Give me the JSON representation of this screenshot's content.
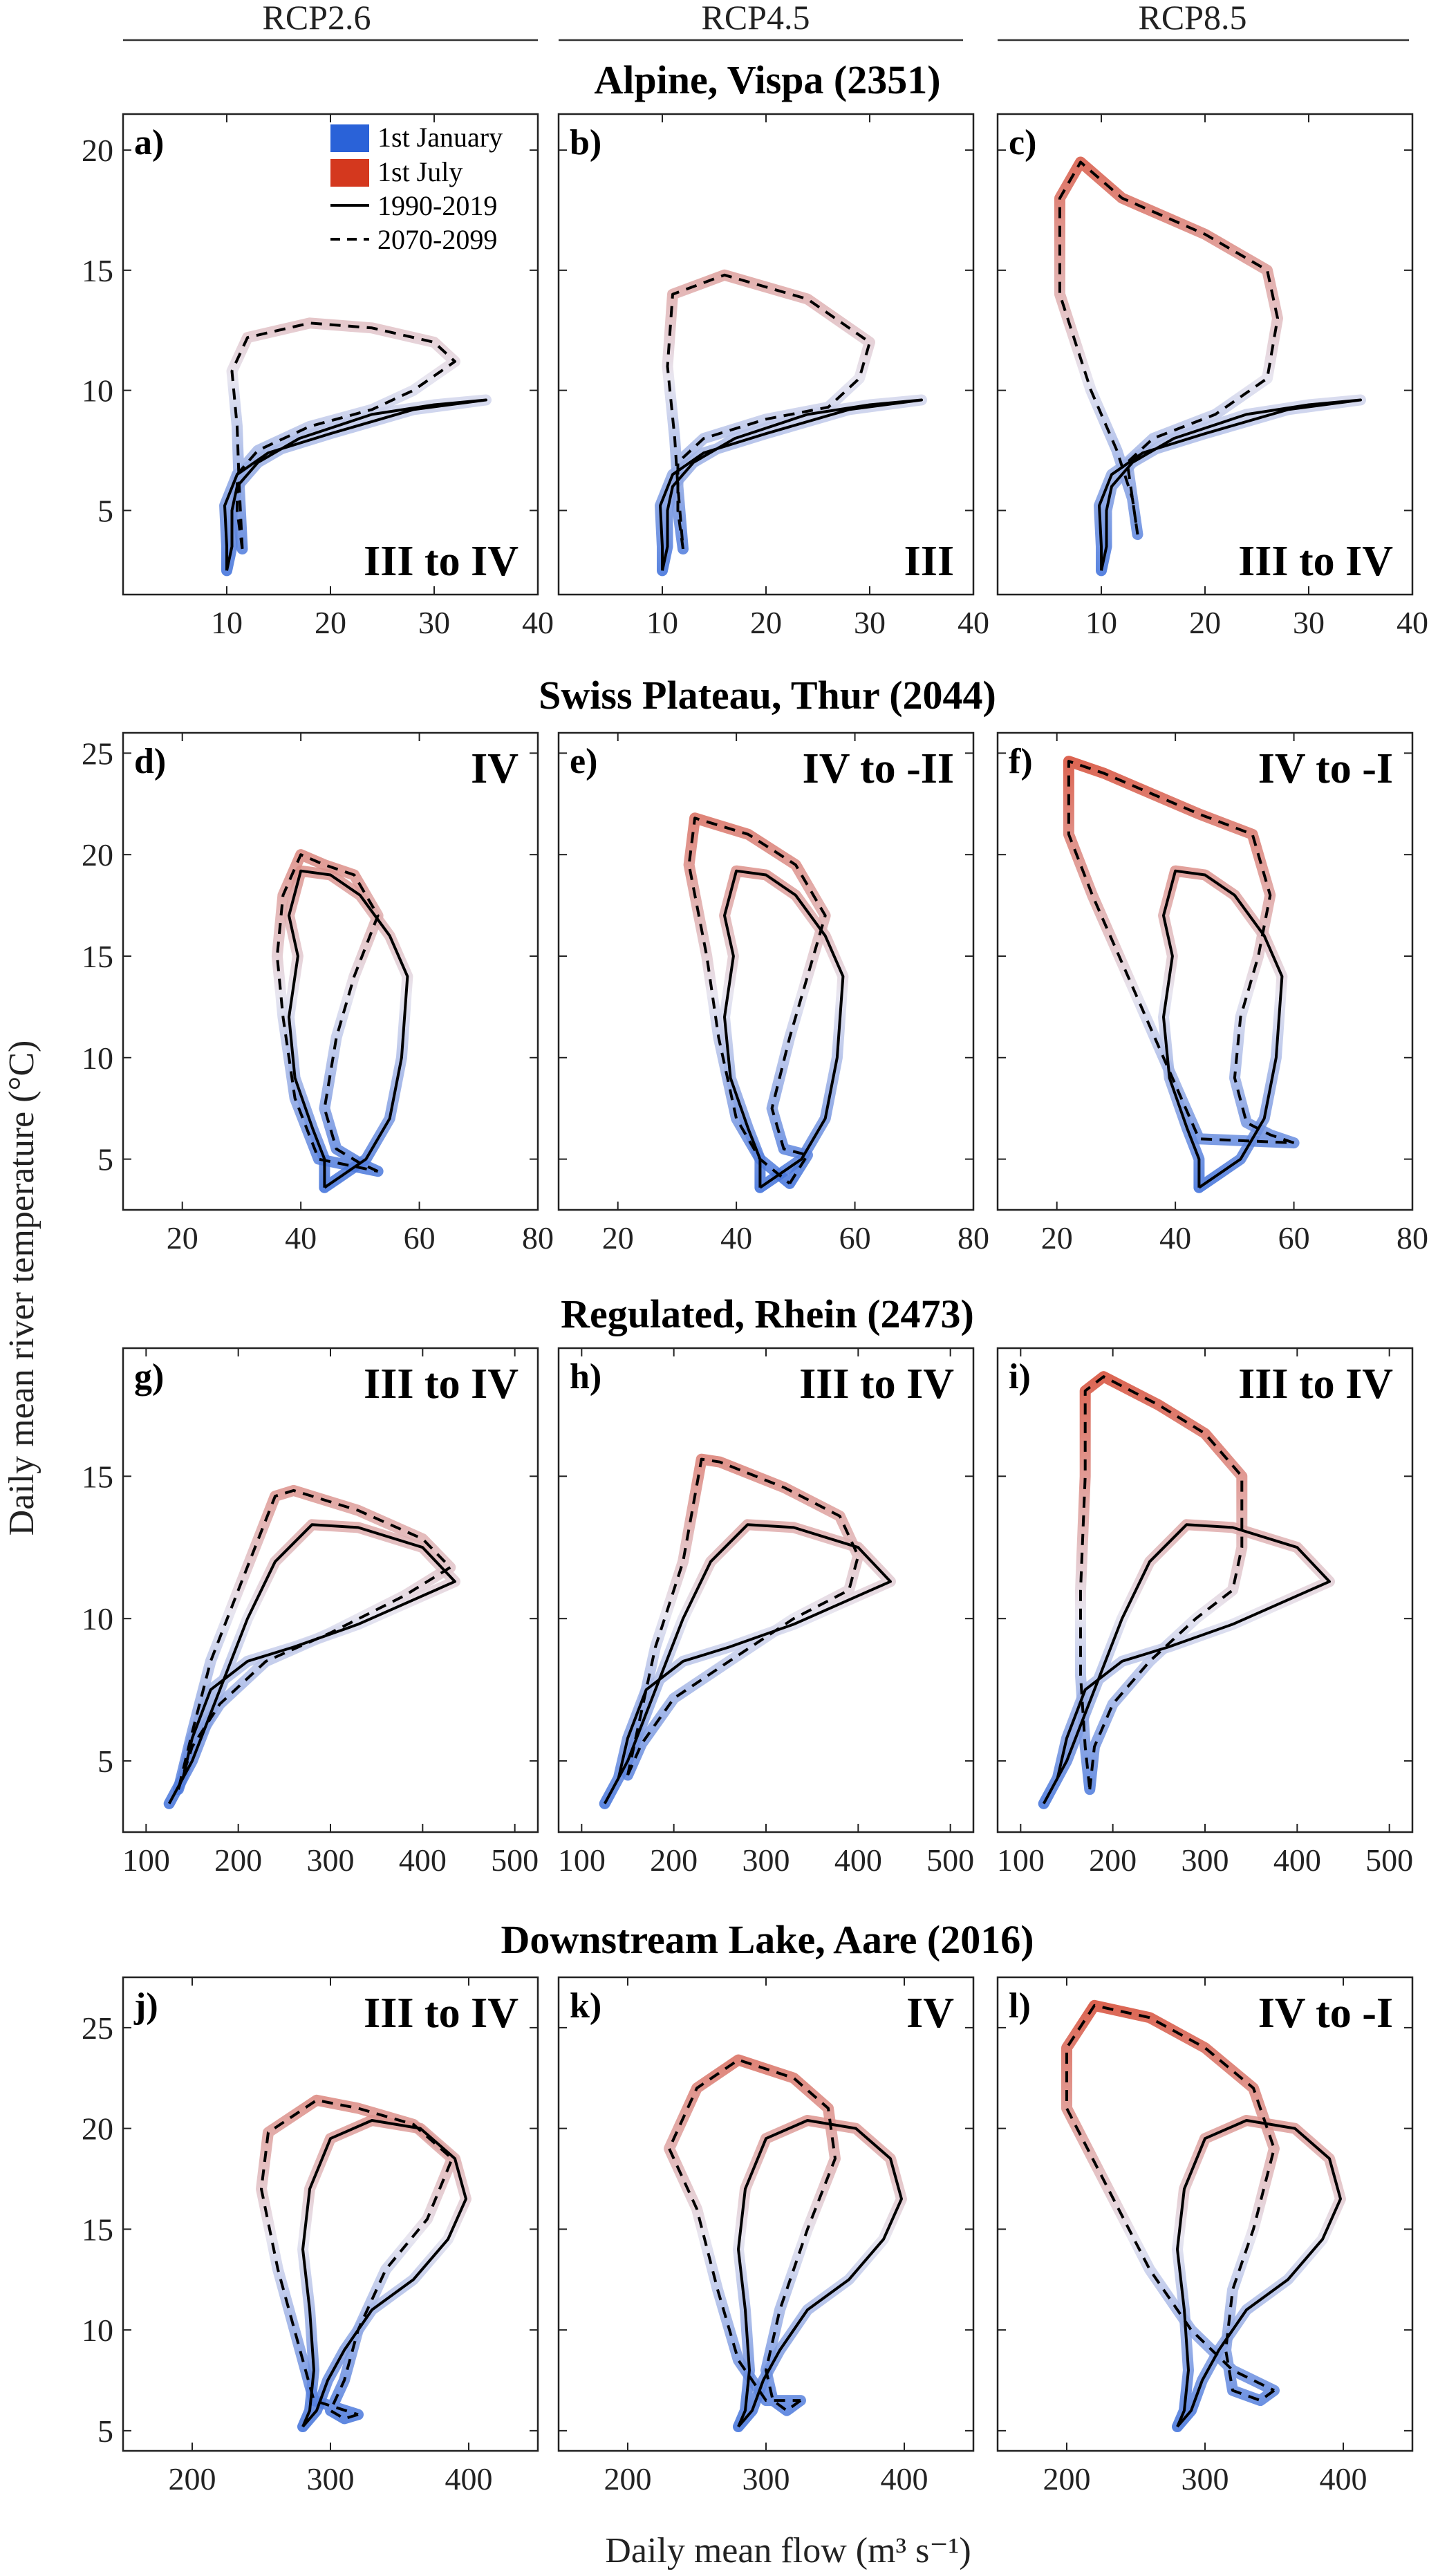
{
  "figure": {
    "ylabel": "Daily mean river temperature (°C)",
    "xlabel": "Daily mean flow (m³ s⁻¹)",
    "columns": [
      "RCP2.6",
      "RCP4.5",
      "RCP8.5"
    ],
    "legend": {
      "january": "1st January",
      "july": "1st July",
      "historical": "1990-2019",
      "future": "2070-2099"
    },
    "colors": {
      "january": "#2a62d8",
      "july": "#d4381e",
      "historical": "#000000",
      "future": "#000000"
    }
  },
  "chart_data": [
    {
      "type": "line",
      "row_title": "Alpine, Vispa (2351)",
      "xlim": [
        0,
        40
      ],
      "ylim": [
        1.5,
        21.5
      ],
      "xticks": [
        10,
        20,
        30,
        40
      ],
      "yticks": [
        5,
        10,
        15,
        20
      ],
      "historical": [
        [
          10,
          2.5
        ],
        [
          10.5,
          3.5
        ],
        [
          10.5,
          5
        ],
        [
          11,
          6
        ],
        [
          13,
          7
        ],
        [
          17,
          8
        ],
        [
          24,
          9
        ],
        [
          30,
          9.4
        ],
        [
          35,
          9.6
        ],
        [
          28,
          9.2
        ],
        [
          20,
          8.2
        ],
        [
          14,
          7.4
        ],
        [
          11,
          6.5
        ],
        [
          9.8,
          5.2
        ],
        [
          10,
          3.5
        ],
        [
          10,
          2.5
        ]
      ],
      "panels": [
        {
          "label": "a)",
          "regime": "III to IV",
          "future": [
            [
              11.5,
              3.4
            ],
            [
              11,
              5
            ],
            [
              11,
              6.5
            ],
            [
              13,
              7.5
            ],
            [
              18,
              8.5
            ],
            [
              24,
              9.2
            ],
            [
              28,
              10
            ],
            [
              32,
              11.2
            ],
            [
              30,
              12
            ],
            [
              24,
              12.6
            ],
            [
              18,
              12.8
            ],
            [
              12,
              12.2
            ],
            [
              10.5,
              10.8
            ],
            [
              11,
              8.5
            ],
            [
              11.2,
              6
            ],
            [
              11.5,
              3.4
            ]
          ]
        },
        {
          "label": "b)",
          "regime": "III",
          "future": [
            [
              12,
              3.4
            ],
            [
              11.5,
              5
            ],
            [
              11.5,
              7
            ],
            [
              14,
              8
            ],
            [
              20,
              8.8
            ],
            [
              26,
              9.3
            ],
            [
              29,
              10.5
            ],
            [
              30,
              12
            ],
            [
              24,
              13.8
            ],
            [
              16,
              14.8
            ],
            [
              11,
              14
            ],
            [
              10.5,
              11
            ],
            [
              11.2,
              8
            ],
            [
              11.5,
              6
            ],
            [
              12,
              3.4
            ]
          ]
        },
        {
          "label": "c)",
          "regime": "III to IV",
          "future": [
            [
              13.5,
              4
            ],
            [
              13,
              5.5
            ],
            [
              12.5,
              7
            ],
            [
              15,
              8
            ],
            [
              21,
              9
            ],
            [
              26,
              10.5
            ],
            [
              27,
              13
            ],
            [
              26,
              15
            ],
            [
              20,
              16.5
            ],
            [
              12,
              18
            ],
            [
              8,
              19.5
            ],
            [
              6,
              18
            ],
            [
              6,
              14
            ],
            [
              9,
              10
            ],
            [
              11.5,
              7.5
            ],
            [
              13,
              5.5
            ],
            [
              13.5,
              4
            ]
          ]
        }
      ]
    },
    {
      "type": "line",
      "row_title": "Swiss Plateau, Thur (2044)",
      "xlim": [
        10,
        80
      ],
      "ylim": [
        2.5,
        26
      ],
      "xticks": [
        20,
        40,
        60,
        80
      ],
      "yticks": [
        5,
        10,
        15,
        20,
        25
      ],
      "historical": [
        [
          44,
          3.6
        ],
        [
          47,
          4.2
        ],
        [
          51,
          5
        ],
        [
          55,
          7
        ],
        [
          57,
          10
        ],
        [
          58,
          14
        ],
        [
          55,
          16
        ],
        [
          50,
          18
        ],
        [
          45,
          19
        ],
        [
          40,
          19.2
        ],
        [
          38,
          17
        ],
        [
          39.5,
          15
        ],
        [
          38,
          12
        ],
        [
          39,
          9
        ],
        [
          42,
          6.5
        ],
        [
          44,
          5
        ],
        [
          44,
          3.6
        ]
      ],
      "panels": [
        {
          "label": "d)",
          "regime": "IV",
          "future": [
            [
              53,
              4.4
            ],
            [
              50,
              4.8
            ],
            [
              46,
              5.5
            ],
            [
              44,
              7.5
            ],
            [
              46,
              11
            ],
            [
              49,
              14
            ],
            [
              53,
              17
            ],
            [
              49,
              19
            ],
            [
              44,
              19.5
            ],
            [
              40,
              20
            ],
            [
              37,
              18
            ],
            [
              36,
              15
            ],
            [
              37,
              12
            ],
            [
              39,
              8
            ],
            [
              43,
              5
            ],
            [
              53,
              4.4
            ]
          ]
        },
        {
          "label": "e)",
          "regime": "IV to -II",
          "future": [
            [
              49,
              3.8
            ],
            [
              52,
              5.2
            ],
            [
              48,
              5.5
            ],
            [
              46,
              7.5
            ],
            [
              49,
              11
            ],
            [
              52,
              14
            ],
            [
              55,
              17
            ],
            [
              50,
              19.5
            ],
            [
              42,
              21
            ],
            [
              33,
              21.8
            ],
            [
              32,
              19.5
            ],
            [
              35,
              15
            ],
            [
              37,
              11
            ],
            [
              40,
              7
            ],
            [
              44,
              5
            ],
            [
              49,
              3.8
            ]
          ]
        },
        {
          "label": "f)",
          "regime": "IV to -I",
          "future": [
            [
              60,
              5.8
            ],
            [
              56,
              6.2
            ],
            [
              52,
              6.8
            ],
            [
              50,
              9
            ],
            [
              51,
              12
            ],
            [
              54,
              15
            ],
            [
              56,
              18
            ],
            [
              53,
              21
            ],
            [
              44,
              22
            ],
            [
              36,
              23
            ],
            [
              28,
              24
            ],
            [
              22,
              24.6
            ],
            [
              22,
              21
            ],
            [
              26,
              18
            ],
            [
              32,
              14
            ],
            [
              38,
              10
            ],
            [
              44,
              6
            ],
            [
              60,
              5.8
            ]
          ]
        }
      ]
    },
    {
      "type": "line",
      "row_title": "Regulated, Rhein (2473)",
      "xlim": [
        75,
        525
      ],
      "ylim": [
        2.5,
        19.5
      ],
      "xticks": [
        100,
        200,
        300,
        400,
        500
      ],
      "yticks": [
        5,
        10,
        15
      ],
      "historical": [
        [
          125,
          3.5
        ],
        [
          140,
          4.4
        ],
        [
          150,
          5.8
        ],
        [
          170,
          7.5
        ],
        [
          210,
          8.5
        ],
        [
          260,
          9
        ],
        [
          330,
          9.8
        ],
        [
          400,
          10.8
        ],
        [
          435,
          11.3
        ],
        [
          400,
          12.5
        ],
        [
          330,
          13.2
        ],
        [
          280,
          13.3
        ],
        [
          240,
          12
        ],
        [
          210,
          10
        ],
        [
          180,
          7.5
        ],
        [
          150,
          5
        ],
        [
          125,
          3.5
        ]
      ],
      "panels": [
        {
          "label": "g)",
          "regime": "III to IV",
          "future": [
            [
              135,
              4
            ],
            [
              150,
              5.5
            ],
            [
              180,
              7
            ],
            [
              230,
              8.5
            ],
            [
              300,
              9.5
            ],
            [
              380,
              10.8
            ],
            [
              430,
              11.8
            ],
            [
              400,
              12.8
            ],
            [
              330,
              13.8
            ],
            [
              260,
              14.5
            ],
            [
              240,
              14.3
            ],
            [
              200,
              11
            ],
            [
              170,
              8.5
            ],
            [
              150,
              6
            ],
            [
              135,
              4
            ]
          ]
        },
        {
          "label": "h)",
          "regime": "III to IV",
          "future": [
            [
              150,
              4.5
            ],
            [
              165,
              5.6
            ],
            [
              200,
              7.2
            ],
            [
              260,
              8.5
            ],
            [
              330,
              10
            ],
            [
              390,
              11
            ],
            [
              400,
              12.2
            ],
            [
              380,
              13.6
            ],
            [
              320,
              14.6
            ],
            [
              250,
              15.5
            ],
            [
              230,
              15.6
            ],
            [
              210,
              12
            ],
            [
              180,
              9
            ],
            [
              160,
              6
            ],
            [
              150,
              4.5
            ]
          ]
        },
        {
          "label": "i)",
          "regime": "III to IV",
          "future": [
            [
              175,
              4
            ],
            [
              180,
              5.5
            ],
            [
              200,
              7
            ],
            [
              240,
              8.5
            ],
            [
              290,
              10
            ],
            [
              330,
              11
            ],
            [
              340,
              12.5
            ],
            [
              340,
              15
            ],
            [
              300,
              16.5
            ],
            [
              250,
              17.5
            ],
            [
              190,
              18.5
            ],
            [
              170,
              18
            ],
            [
              170,
              15
            ],
            [
              165,
              11
            ],
            [
              165,
              8
            ],
            [
              170,
              5.5
            ],
            [
              175,
              4
            ]
          ]
        }
      ]
    },
    {
      "type": "line",
      "row_title": "Downstream Lake, Aare (2016)",
      "xlim": [
        150,
        450
      ],
      "ylim": [
        4,
        27.5
      ],
      "xticks": [
        200,
        300,
        400
      ],
      "yticks": [
        5,
        10,
        15,
        20,
        25
      ],
      "historical": [
        [
          280,
          5.2
        ],
        [
          290,
          6
        ],
        [
          298,
          7.5
        ],
        [
          310,
          9
        ],
        [
          330,
          11
        ],
        [
          360,
          12.5
        ],
        [
          385,
          14.5
        ],
        [
          398,
          16.5
        ],
        [
          390,
          18.5
        ],
        [
          365,
          20
        ],
        [
          330,
          20.4
        ],
        [
          300,
          19.5
        ],
        [
          285,
          17
        ],
        [
          280,
          14
        ],
        [
          285,
          11
        ],
        [
          288,
          8
        ],
        [
          285,
          6
        ],
        [
          280,
          5.2
        ]
      ],
      "panels": [
        {
          "label": "j)",
          "regime": "III to IV",
          "future": [
            [
              320,
              5.8
            ],
            [
              310,
              5.6
            ],
            [
              300,
              6
            ],
            [
              310,
              7.5
            ],
            [
              320,
              10
            ],
            [
              340,
              13
            ],
            [
              370,
              15.5
            ],
            [
              388,
              18.5
            ],
            [
              360,
              20.2
            ],
            [
              320,
              21
            ],
            [
              290,
              21.4
            ],
            [
              255,
              19.8
            ],
            [
              250,
              17
            ],
            [
              262,
              13
            ],
            [
              278,
              9
            ],
            [
              288,
              6.5
            ],
            [
              320,
              5.8
            ]
          ]
        },
        {
          "label": "k)",
          "regime": "IV",
          "future": [
            [
              325,
              6.5
            ],
            [
              315,
              6
            ],
            [
              305,
              6.5
            ],
            [
              300,
              8
            ],
            [
              310,
              11
            ],
            [
              330,
              15
            ],
            [
              350,
              18.5
            ],
            [
              345,
              21
            ],
            [
              320,
              22.5
            ],
            [
              280,
              23.4
            ],
            [
              250,
              22
            ],
            [
              230,
              19
            ],
            [
              250,
              16
            ],
            [
              265,
              12
            ],
            [
              280,
              8.5
            ],
            [
              300,
              6.5
            ],
            [
              325,
              6.5
            ]
          ]
        },
        {
          "label": "l)",
          "regime": "IV to -I",
          "future": [
            [
              350,
              7
            ],
            [
              340,
              6.5
            ],
            [
              320,
              7
            ],
            [
              315,
              9
            ],
            [
              320,
              12
            ],
            [
              335,
              15
            ],
            [
              350,
              19
            ],
            [
              335,
              22
            ],
            [
              300,
              24
            ],
            [
              260,
              25.5
            ],
            [
              220,
              26.1
            ],
            [
              200,
              24
            ],
            [
              200,
              21
            ],
            [
              230,
              17
            ],
            [
              260,
              13
            ],
            [
              290,
              10
            ],
            [
              320,
              8
            ],
            [
              350,
              7
            ]
          ]
        }
      ]
    }
  ]
}
